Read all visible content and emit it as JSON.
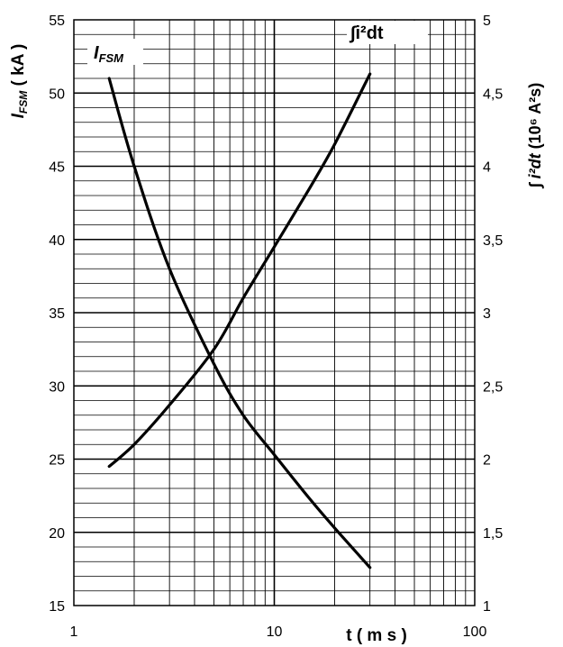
{
  "chart_data": {
    "type": "line",
    "xscale": "log",
    "xlim": [
      1,
      100
    ],
    "y_left_lim": [
      15,
      55
    ],
    "y_right_lim": [
      1,
      5
    ],
    "grid": true,
    "x_ticks": [
      "1",
      "10",
      "100"
    ],
    "y_left_ticks": [
      "15",
      "20",
      "25",
      "30",
      "35",
      "40",
      "45",
      "50",
      "55"
    ],
    "y_right_ticks": [
      "1",
      "1,5",
      "2",
      "2,5",
      "3",
      "3,5",
      "4",
      "4,5",
      "5"
    ],
    "xlabel": "t ( m s )",
    "ylabel_left": {
      "main": "I",
      "sub": "FSM",
      "unit": " ( kA )"
    },
    "ylabel_right": {
      "main": "∫ i²dt",
      "unit": " (10⁶ A²s)"
    },
    "series": [
      {
        "name": "I_FSM",
        "label_main": "I",
        "label_sub": "FSM",
        "axis": "left",
        "x": [
          1.5,
          2,
          3,
          5,
          7,
          10,
          15,
          20,
          30
        ],
        "y": [
          51,
          45,
          38,
          31.5,
          28,
          25.3,
          22.3,
          20.3,
          17.6
        ]
      },
      {
        "name": "∫i²dt",
        "label": "∫i²dt",
        "axis": "right",
        "x": [
          1.5,
          2,
          3,
          5,
          7,
          10,
          15,
          20,
          30
        ],
        "y": [
          1.95,
          2.1,
          2.37,
          2.75,
          3.1,
          3.45,
          3.85,
          4.15,
          4.63
        ]
      }
    ]
  }
}
